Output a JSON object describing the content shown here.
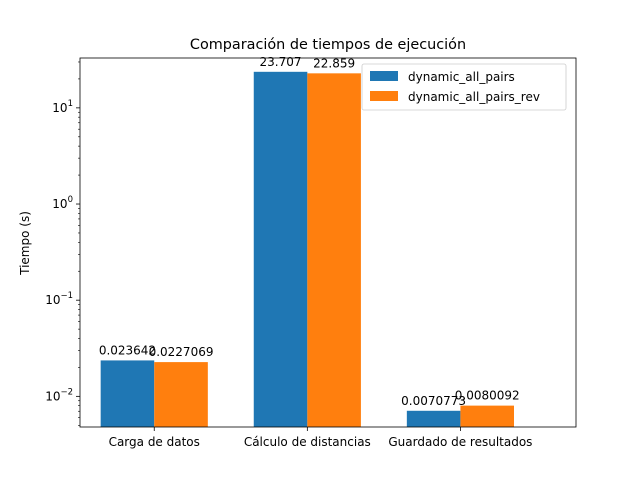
{
  "chart_data": {
    "type": "bar",
    "title": "Comparación de tiempos de ejecución",
    "xlabel": "",
    "ylabel": "Tiempo (s)",
    "yscale": "log",
    "ylim": [
      0.0048,
      33
    ],
    "y_ticks": [
      {
        "value": 0.01,
        "base": "10",
        "exp": "−2"
      },
      {
        "value": 0.1,
        "base": "10",
        "exp": "−1"
      },
      {
        "value": 1,
        "base": "10",
        "exp": "0"
      },
      {
        "value": 10,
        "base": "10",
        "exp": "1"
      }
    ],
    "categories": [
      "Carga de datos",
      "Cálculo de distancias",
      "Guardado de resultados"
    ],
    "series": [
      {
        "name": "dynamic_all_pairs",
        "color": "#1f77b4",
        "values": [
          0.023642,
          23.707,
          0.0070773
        ],
        "labels": [
          "0.023642",
          "23.707",
          "0.0070773"
        ]
      },
      {
        "name": "dynamic_all_pairs_rev",
        "color": "#ff7f0e",
        "values": [
          0.0227069,
          22.859,
          0.0080092
        ],
        "labels": [
          "0.0227069",
          "22.859",
          "0.0080092"
        ]
      }
    ],
    "legend_position": "top-right",
    "grid": false
  }
}
